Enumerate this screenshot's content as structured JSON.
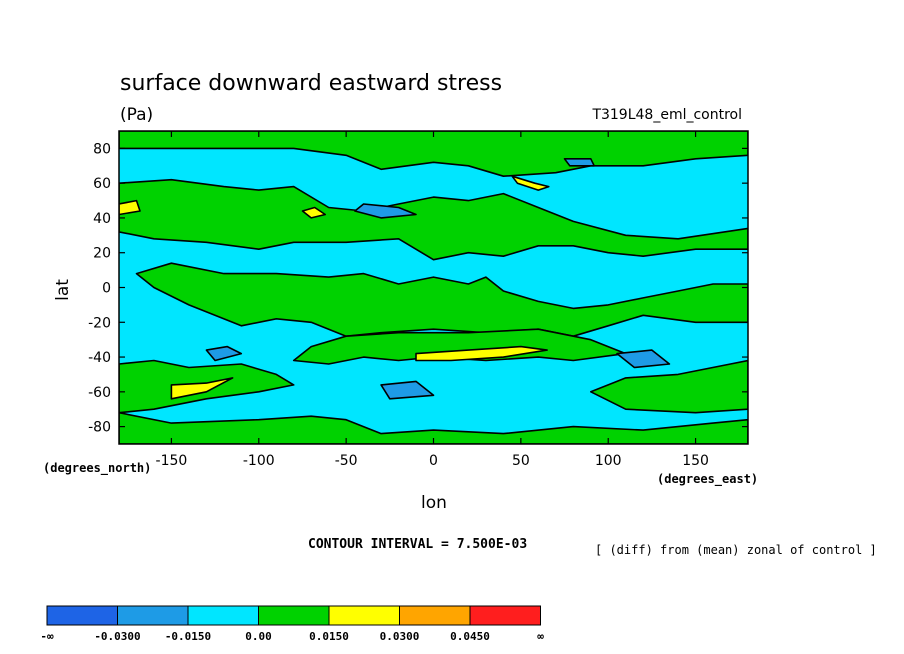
{
  "chart_data": {
    "type": "heatmap",
    "title": "surface downward eastward stress",
    "units": "(Pa)",
    "experiment": "T319L48_eml_control",
    "xlabel": "lon",
    "ylabel": "lat",
    "x_units": "(degrees_east)",
    "y_units": "(degrees_north)",
    "xlim": [
      -180,
      180
    ],
    "ylim": [
      -90,
      90
    ],
    "x_ticks": [
      -150,
      -100,
      -50,
      0,
      50,
      100,
      150
    ],
    "y_ticks": [
      80,
      60,
      40,
      20,
      0,
      -20,
      -40,
      -60,
      -80
    ],
    "contour_interval": "CONTOUR INTERVAL = 7.500E-03",
    "annotation": "[ (diff) from (mean) zonal of control ]",
    "legend": {
      "labels": [
        "-∞",
        "-0.0300",
        "-0.0150",
        "0.00",
        "0.0150",
        "0.0300",
        "0.0450",
        "∞"
      ],
      "colors": [
        "#1e64e6",
        "#1e9be6",
        "#00e6ff",
        "#00d200",
        "#ffff00",
        "#ffa500",
        "#ff1e1e"
      ]
    },
    "field_levels": [
      -0.0375,
      -0.0225,
      -0.0075,
      0.0075,
      0.0225,
      0.0375,
      0.0525
    ],
    "regions": [
      {
        "level": 0.0075,
        "poly": [
          [
            -180,
            90
          ],
          [
            180,
            90
          ],
          [
            180,
            76
          ],
          [
            150,
            74
          ],
          [
            120,
            70
          ],
          [
            90,
            70
          ],
          [
            70,
            66
          ],
          [
            40,
            64
          ],
          [
            20,
            70
          ],
          [
            0,
            72
          ],
          [
            -30,
            68
          ],
          [
            -50,
            76
          ],
          [
            -80,
            80
          ],
          [
            -120,
            80
          ],
          [
            -150,
            80
          ],
          [
            -180,
            80
          ]
        ]
      },
      {
        "level": 0.0075,
        "poly": [
          [
            -180,
            60
          ],
          [
            -150,
            62
          ],
          [
            -120,
            58
          ],
          [
            -100,
            56
          ],
          [
            -80,
            58
          ],
          [
            -60,
            46
          ],
          [
            -40,
            44
          ],
          [
            -20,
            48
          ],
          [
            0,
            52
          ],
          [
            20,
            50
          ],
          [
            40,
            54
          ],
          [
            60,
            46
          ],
          [
            80,
            38
          ],
          [
            110,
            30
          ],
          [
            140,
            28
          ],
          [
            180,
            34
          ],
          [
            180,
            22
          ],
          [
            150,
            22
          ],
          [
            120,
            18
          ],
          [
            100,
            20
          ],
          [
            80,
            24
          ],
          [
            60,
            24
          ],
          [
            40,
            18
          ],
          [
            20,
            20
          ],
          [
            0,
            16
          ],
          [
            -20,
            28
          ],
          [
            -50,
            26
          ],
          [
            -80,
            26
          ],
          [
            -100,
            22
          ],
          [
            -130,
            26
          ],
          [
            -160,
            28
          ],
          [
            -180,
            32
          ]
        ]
      },
      {
        "level": 0.0075,
        "poly": [
          [
            -150,
            14
          ],
          [
            -120,
            8
          ],
          [
            -90,
            8
          ],
          [
            -60,
            6
          ],
          [
            -40,
            8
          ],
          [
            -20,
            2
          ],
          [
            0,
            6
          ],
          [
            20,
            2
          ],
          [
            30,
            6
          ],
          [
            40,
            -2
          ],
          [
            60,
            -8
          ],
          [
            80,
            -12
          ],
          [
            100,
            -10
          ],
          [
            120,
            -6
          ],
          [
            140,
            -2
          ],
          [
            160,
            2
          ],
          [
            180,
            2
          ],
          [
            180,
            -20
          ],
          [
            150,
            -20
          ],
          [
            120,
            -16
          ],
          [
            100,
            -22
          ],
          [
            80,
            -28
          ],
          [
            60,
            -24
          ],
          [
            30,
            -26
          ],
          [
            0,
            -24
          ],
          [
            -30,
            -26
          ],
          [
            -50,
            -28
          ],
          [
            -70,
            -20
          ],
          [
            -90,
            -18
          ],
          [
            -110,
            -22
          ],
          [
            -140,
            -10
          ],
          [
            -160,
            0
          ],
          [
            -170,
            8
          ]
        ]
      },
      {
        "level": 0.0075,
        "poly": [
          [
            -50,
            -28
          ],
          [
            -20,
            -26
          ],
          [
            20,
            -26
          ],
          [
            60,
            -24
          ],
          [
            90,
            -30
          ],
          [
            110,
            -38
          ],
          [
            80,
            -42
          ],
          [
            60,
            -40
          ],
          [
            30,
            -42
          ],
          [
            0,
            -40
          ],
          [
            -20,
            -42
          ],
          [
            -40,
            -40
          ],
          [
            -60,
            -44
          ],
          [
            -80,
            -42
          ],
          [
            -70,
            -34
          ]
        ]
      },
      {
        "level": 0.0075,
        "poly": [
          [
            -180,
            -44
          ],
          [
            -160,
            -42
          ],
          [
            -140,
            -46
          ],
          [
            -110,
            -44
          ],
          [
            -90,
            -50
          ],
          [
            -80,
            -56
          ],
          [
            -100,
            -60
          ],
          [
            -130,
            -64
          ],
          [
            -160,
            -70
          ],
          [
            -180,
            -72
          ]
        ]
      },
      {
        "level": 0.0075,
        "poly": [
          [
            -180,
            -72
          ],
          [
            -150,
            -78
          ],
          [
            -100,
            -76
          ],
          [
            -70,
            -74
          ],
          [
            -50,
            -76
          ],
          [
            -30,
            -84
          ],
          [
            0,
            -82
          ],
          [
            40,
            -84
          ],
          [
            80,
            -80
          ],
          [
            120,
            -82
          ],
          [
            160,
            -78
          ],
          [
            180,
            -76
          ],
          [
            180,
            -90
          ],
          [
            -180,
            -90
          ]
        ]
      },
      {
        "level": 0.0075,
        "poly": [
          [
            90,
            -60
          ],
          [
            110,
            -52
          ],
          [
            140,
            -50
          ],
          [
            170,
            -44
          ],
          [
            180,
            -42
          ],
          [
            180,
            -70
          ],
          [
            150,
            -72
          ],
          [
            110,
            -70
          ]
        ]
      },
      {
        "level": 0.0225,
        "poly": [
          [
            -10,
            -38
          ],
          [
            20,
            -36
          ],
          [
            50,
            -34
          ],
          [
            65,
            -36
          ],
          [
            40,
            -40
          ],
          [
            10,
            -42
          ],
          [
            -10,
            -42
          ]
        ]
      },
      {
        "level": 0.0225,
        "poly": [
          [
            -150,
            -56
          ],
          [
            -130,
            -55
          ],
          [
            -115,
            -52
          ],
          [
            -130,
            -60
          ],
          [
            -150,
            -64
          ]
        ]
      },
      {
        "level": 0.0225,
        "poly": [
          [
            -180,
            48
          ],
          [
            -170,
            50
          ],
          [
            -168,
            44
          ],
          [
            -180,
            42
          ]
        ]
      },
      {
        "level": 0.0225,
        "poly": [
          [
            -75,
            44
          ],
          [
            -68,
            46
          ],
          [
            -62,
            42
          ],
          [
            -70,
            40
          ]
        ]
      },
      {
        "level": 0.0225,
        "poly": [
          [
            45,
            64
          ],
          [
            58,
            60
          ],
          [
            66,
            58
          ],
          [
            60,
            56
          ],
          [
            48,
            60
          ]
        ]
      },
      {
        "level": -0.0225,
        "poly": [
          [
            -40,
            48
          ],
          [
            -20,
            46
          ],
          [
            -10,
            42
          ],
          [
            -30,
            40
          ],
          [
            -45,
            44
          ]
        ]
      },
      {
        "level": -0.0225,
        "poly": [
          [
            75,
            74
          ],
          [
            90,
            74
          ],
          [
            92,
            70
          ],
          [
            78,
            70
          ]
        ]
      },
      {
        "level": -0.0225,
        "poly": [
          [
            -130,
            -36
          ],
          [
            -118,
            -34
          ],
          [
            -110,
            -38
          ],
          [
            -125,
            -42
          ]
        ]
      },
      {
        "level": -0.0225,
        "poly": [
          [
            -30,
            -56
          ],
          [
            -10,
            -54
          ],
          [
            0,
            -62
          ],
          [
            -25,
            -64
          ]
        ]
      },
      {
        "level": -0.0225,
        "poly": [
          [
            105,
            -38
          ],
          [
            125,
            -36
          ],
          [
            135,
            -44
          ],
          [
            115,
            -46
          ]
        ]
      }
    ]
  }
}
